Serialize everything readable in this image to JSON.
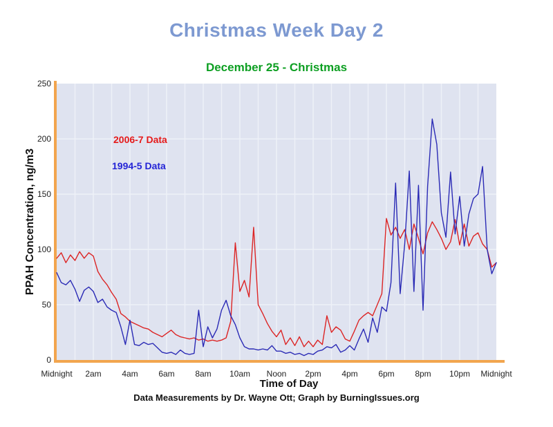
{
  "header": {
    "title": "Christmas Week Day 2",
    "title_color": "#7d99d1",
    "subtitle": "December 25 - Christmas",
    "subtitle_color": "#0d9f22"
  },
  "footer": {
    "credit": "Data Measurements by Dr. Wayne Ott; Graph by BurningIssues.org"
  },
  "chart_data": {
    "type": "line",
    "title": "Christmas Week Day 2",
    "subtitle": "December 25 - Christmas",
    "xlabel": "Time of Day",
    "ylabel": "PPAH Concentration, ng/m3",
    "ylim": [
      0,
      250
    ],
    "xlim_hours": [
      0,
      24
    ],
    "y_ticks": [
      0,
      50,
      100,
      150,
      200,
      250
    ],
    "x_ticks": [
      {
        "t": 0,
        "label": "Midnight"
      },
      {
        "t": 2,
        "label": "2am"
      },
      {
        "t": 4,
        "label": "4am"
      },
      {
        "t": 6,
        "label": "6am"
      },
      {
        "t": 8,
        "label": "8am"
      },
      {
        "t": 10,
        "label": "10am"
      },
      {
        "t": 12,
        "label": "Noon"
      },
      {
        "t": 14,
        "label": "2pm"
      },
      {
        "t": 16,
        "label": "4pm"
      },
      {
        "t": 18,
        "label": "6pm"
      },
      {
        "t": 20,
        "label": "8pm"
      },
      {
        "t": 22,
        "label": "10pm"
      },
      {
        "t": 24,
        "label": "Midnight"
      }
    ],
    "grid": {
      "vertical_every_hours": 1,
      "horizontal_every": 50,
      "color": "#eef1f8"
    },
    "plot_bg": "#dfe3f0",
    "axis_color": "#f2a54e",
    "tick_text_color": "#222222",
    "legend_position": "upper-left-inside",
    "legend": [
      {
        "name": "2006-7 Data",
        "color": "#e51a1a"
      },
      {
        "name": "1994-5 Data",
        "color": "#2424d6"
      }
    ],
    "x": [
      0,
      0.25,
      0.5,
      0.75,
      1,
      1.25,
      1.5,
      1.75,
      2,
      2.25,
      2.5,
      2.75,
      3,
      3.25,
      3.5,
      3.75,
      4,
      4.25,
      4.5,
      4.75,
      5,
      5.25,
      5.5,
      5.75,
      6,
      6.25,
      6.5,
      6.75,
      7,
      7.25,
      7.5,
      7.75,
      8,
      8.25,
      8.5,
      8.75,
      9,
      9.25,
      9.5,
      9.75,
      10,
      10.25,
      10.5,
      10.75,
      11,
      11.25,
      11.5,
      11.75,
      12,
      12.25,
      12.5,
      12.75,
      13,
      13.25,
      13.5,
      13.75,
      14,
      14.25,
      14.5,
      14.75,
      15,
      15.25,
      15.5,
      15.75,
      16,
      16.25,
      16.5,
      16.75,
      17,
      17.25,
      17.5,
      17.75,
      18,
      18.25,
      18.5,
      18.75,
      19,
      19.25,
      19.5,
      19.75,
      20,
      20.25,
      20.5,
      20.75,
      21,
      21.25,
      21.5,
      21.75,
      22,
      22.25,
      22.5,
      22.75,
      23,
      23.25,
      23.5,
      23.75,
      24
    ],
    "series": [
      {
        "name": "2006-7 Data",
        "color": "#dc2424",
        "values": [
          92,
          97,
          88,
          95,
          90,
          98,
          92,
          97,
          94,
          80,
          73,
          68,
          61,
          55,
          42,
          39,
          35,
          33,
          31,
          29,
          28,
          25,
          23,
          21,
          24,
          27,
          23,
          21,
          20,
          19,
          20,
          18,
          19,
          17,
          18,
          17,
          18,
          20,
          35,
          106,
          62,
          72,
          57,
          120,
          50,
          42,
          33,
          26,
          21,
          27,
          14,
          20,
          13,
          21,
          12,
          17,
          12,
          18,
          14,
          40,
          25,
          30,
          27,
          19,
          17,
          26,
          36,
          40,
          43,
          40,
          50,
          60,
          128,
          113,
          120,
          110,
          118,
          100,
          123,
          110,
          96,
          115,
          125,
          118,
          110,
          100,
          107,
          127,
          104,
          123,
          103,
          112,
          115,
          105,
          100,
          84,
          88
        ]
      },
      {
        "name": "1994-5 Data",
        "color": "#2a2ab5",
        "values": [
          79,
          70,
          68,
          72,
          64,
          53,
          63,
          66,
          62,
          52,
          55,
          48,
          45,
          43,
          30,
          14,
          36,
          14,
          13,
          16,
          14,
          15,
          11,
          7,
          6,
          7,
          5,
          9,
          6,
          5,
          6,
          45,
          12,
          30,
          20,
          28,
          45,
          54,
          40,
          32,
          20,
          12,
          10,
          10,
          9,
          10,
          9,
          13,
          8,
          8,
          6,
          7,
          5,
          6,
          4,
          6,
          5,
          8,
          9,
          12,
          11,
          14,
          7,
          9,
          13,
          9,
          19,
          28,
          16,
          38,
          25,
          48,
          44,
          70,
          160,
          60,
          105,
          171,
          62,
          158,
          45,
          157,
          218,
          195,
          133,
          111,
          170,
          114,
          148,
          103,
          132,
          146,
          150,
          175,
          100,
          78,
          88
        ]
      }
    ]
  }
}
